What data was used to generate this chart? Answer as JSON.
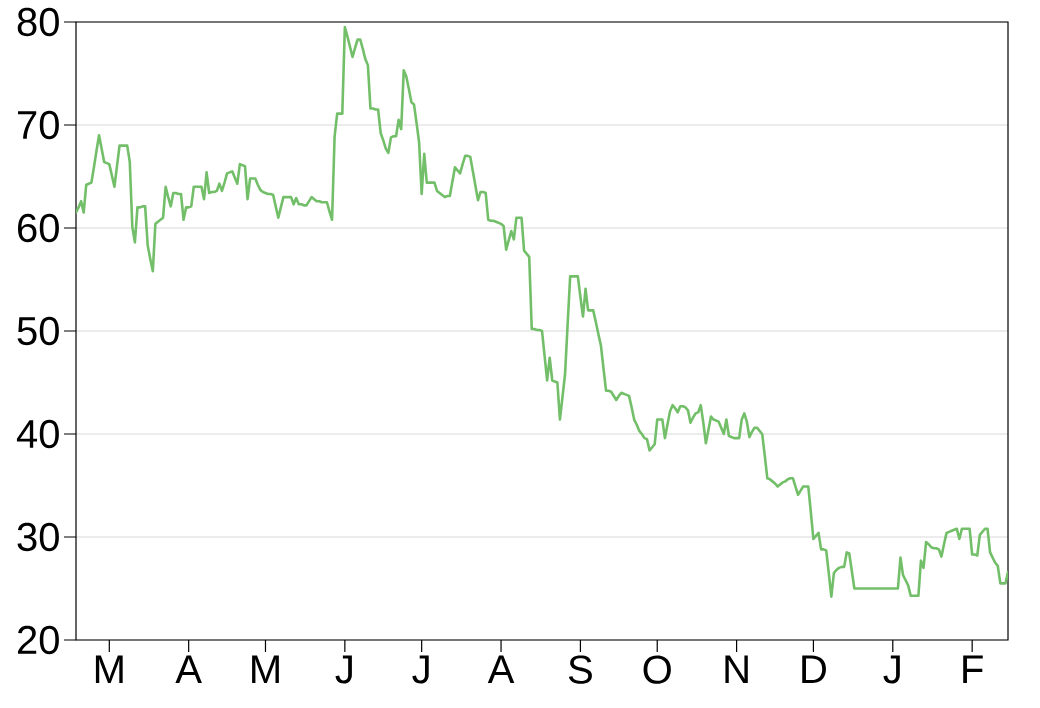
{
  "chart_data": {
    "type": "line",
    "color": "#73bf69",
    "grid": "y",
    "ylim": [
      20,
      80
    ],
    "yticks": [
      20,
      30,
      40,
      50,
      60,
      70,
      80
    ],
    "categories": [
      null,
      null,
      null,
      null,
      null,
      null,
      null,
      null,
      null,
      null,
      null,
      null,
      null,
      "M",
      null,
      null,
      null,
      null,
      null,
      null,
      null,
      null,
      null,
      null,
      null,
      null,
      null,
      null,
      null,
      null,
      null,
      null,
      null,
      null,
      null,
      null,
      null,
      null,
      null,
      null,
      null,
      null,
      null,
      null,
      "A",
      null,
      null,
      null,
      null,
      null,
      null,
      null,
      null,
      null,
      null,
      null,
      null,
      null,
      null,
      null,
      null,
      null,
      null,
      null,
      null,
      null,
      null,
      null,
      null,
      null,
      null,
      null,
      null,
      null,
      "M",
      null,
      null,
      null,
      null,
      null,
      null,
      null,
      null,
      null,
      null,
      null,
      null,
      null,
      null,
      null,
      null,
      null,
      null,
      null,
      null,
      null,
      null,
      null,
      null,
      null,
      null,
      null,
      null,
      null,
      null,
      "J",
      null,
      null,
      null,
      null,
      null,
      null,
      null,
      null,
      null,
      null,
      null,
      null,
      null,
      null,
      null,
      null,
      null,
      null,
      null,
      null,
      null,
      null,
      null,
      null,
      null,
      null,
      null,
      null,
      null,
      "J",
      null,
      null,
      null,
      null,
      null,
      null,
      null,
      null,
      null,
      null,
      null,
      null,
      null,
      null,
      null,
      null,
      null,
      null,
      null,
      null,
      null,
      null,
      null,
      null,
      null,
      null,
      null,
      null,
      null,
      null,
      "A",
      null,
      null,
      null,
      null,
      null,
      null,
      null,
      null,
      null,
      null,
      null,
      null,
      null,
      null,
      null,
      null,
      null,
      null,
      null,
      null,
      null,
      null,
      null,
      null,
      null,
      null,
      null,
      null,
      null,
      null,
      "S",
      null,
      null,
      null,
      null,
      null,
      null,
      null,
      null,
      null,
      null,
      null,
      null,
      null,
      null,
      null,
      null,
      null,
      null,
      null,
      null,
      null,
      null,
      null,
      null,
      null,
      null,
      null,
      null,
      null,
      "O",
      null,
      null,
      null,
      null,
      null,
      null,
      null,
      null,
      null,
      null,
      null,
      null,
      null,
      null,
      null,
      null,
      null,
      null,
      null,
      null,
      null,
      null,
      null,
      null,
      null,
      null,
      null,
      null,
      null,
      null,
      "N",
      null,
      null,
      null,
      null,
      null,
      null,
      null,
      null,
      null,
      null,
      null,
      null,
      null,
      null,
      null,
      null,
      null,
      null,
      null,
      null,
      null,
      null,
      null,
      null,
      null,
      null,
      null,
      null,
      null,
      "D",
      null,
      null,
      null,
      null,
      null,
      null,
      null,
      null,
      null,
      null,
      null,
      null,
      null,
      null,
      null,
      null,
      null,
      null,
      null,
      null,
      null,
      null,
      null,
      null,
      null,
      null,
      null,
      null,
      null,
      null,
      "J",
      null,
      null,
      null,
      null,
      null,
      null,
      null,
      null,
      null,
      null,
      null,
      null,
      null,
      null,
      null,
      null,
      null,
      null,
      null,
      null,
      null,
      null,
      null,
      null,
      null,
      null,
      null,
      null,
      null,
      null,
      "F",
      null,
      null,
      null,
      null,
      null,
      null,
      null,
      null,
      null,
      null,
      null,
      null,
      null,
      null
    ],
    "values": [
      61.5,
      62.0,
      62.6,
      61.5,
      64.2,
      64.3,
      64.4,
      65.9,
      67.5,
      69.0,
      67.7,
      66.4,
      66.3,
      66.2,
      65.1,
      64.0,
      66.0,
      68.0,
      68.0,
      68.0,
      68.0,
      66.4,
      60.1,
      58.6,
      62.0,
      62.0,
      62.1,
      62.1,
      58.3,
      57.0,
      55.8,
      60.4,
      60.6,
      60.8,
      61.0,
      64.0,
      63.0,
      62.1,
      63.4,
      63.4,
      63.3,
      63.3,
      60.8,
      62.0,
      62.0,
      62.1,
      64.0,
      64.0,
      64.0,
      64.0,
      62.8,
      65.4,
      63.4,
      63.5,
      63.5,
      63.6,
      64.3,
      63.6,
      64.4,
      65.3,
      65.4,
      65.5,
      64.9,
      64.3,
      66.2,
      66.1,
      66.0,
      62.8,
      64.8,
      64.8,
      64.8,
      64.2,
      63.7,
      63.5,
      63.4,
      63.3,
      63.3,
      63.2,
      62.1,
      61.0,
      62.0,
      63.0,
      63.0,
      63.0,
      63.0,
      62.3,
      62.9,
      62.3,
      62.3,
      62.2,
      62.2,
      62.6,
      63.0,
      62.8,
      62.6,
      62.6,
      62.5,
      62.5,
      62.5,
      61.6,
      60.8,
      68.9,
      71.1,
      71.1,
      71.1,
      79.5,
      78.6,
      77.6,
      76.6,
      77.5,
      78.3,
      78.3,
      77.4,
      76.4,
      75.8,
      71.6,
      71.6,
      71.5,
      71.5,
      69.2,
      68.5,
      67.7,
      67.3,
      68.8,
      68.9,
      68.9,
      70.5,
      69.6,
      75.3,
      74.7,
      73.5,
      72.2,
      72.0,
      70.2,
      68.3,
      63.3,
      67.2,
      64.4,
      64.4,
      64.4,
      64.4,
      63.6,
      63.4,
      63.2,
      63.0,
      63.1,
      63.1,
      64.5,
      65.9,
      65.6,
      65.3,
      66.2,
      67.0,
      67.0,
      66.9,
      65.5,
      64.1,
      62.7,
      63.5,
      63.5,
      63.4,
      60.8,
      60.7,
      60.7,
      60.6,
      60.5,
      60.4,
      60.2,
      57.9,
      58.8,
      59.7,
      58.9,
      61.0,
      61.0,
      61.0,
      57.8,
      57.5,
      57.2,
      50.2,
      50.2,
      50.1,
      50.1,
      50.0,
      47.6,
      45.2,
      47.4,
      45.2,
      45.1,
      45.0,
      41.4,
      43.6,
      45.8,
      50.6,
      55.3,
      55.3,
      55.3,
      55.3,
      53.3,
      51.4,
      54.1,
      52.0,
      52.0,
      52.0,
      50.9,
      49.7,
      48.6,
      46.4,
      44.2,
      44.2,
      44.1,
      43.7,
      43.3,
      43.7,
      44.0,
      43.9,
      43.8,
      43.7,
      42.6,
      41.4,
      40.9,
      40.3,
      40.0,
      39.6,
      39.5,
      38.4,
      38.7,
      39.0,
      41.4,
      41.4,
      41.4,
      39.6,
      40.9,
      42.2,
      42.8,
      42.5,
      42.1,
      42.7,
      42.7,
      42.6,
      42.3,
      41.1,
      41.6,
      42.0,
      42.1,
      42.8,
      41.1,
      39.1,
      40.4,
      41.7,
      41.4,
      41.3,
      41.2,
      40.6,
      40.0,
      41.4,
      39.8,
      39.7,
      39.6,
      39.6,
      39.6,
      41.4,
      42.0,
      41.2,
      39.7,
      40.2,
      40.6,
      40.6,
      40.3,
      40.0,
      37.9,
      35.7,
      35.6,
      35.4,
      35.2,
      34.9,
      35.1,
      35.3,
      35.4,
      35.6,
      35.7,
      35.7,
      34.9,
      34.1,
      34.5,
      34.9,
      34.9,
      34.9,
      32.4,
      29.8,
      30.1,
      30.4,
      28.8,
      28.8,
      28.7,
      26.5,
      24.2,
      26.5,
      26.8,
      27.0,
      27.1,
      27.1,
      28.5,
      28.4,
      26.7,
      25.0,
      25.0,
      25.0,
      25.0,
      25.0,
      25.0,
      25.0,
      25.0,
      25.0,
      25.0,
      25.0,
      25.0,
      25.0,
      25.0,
      25.0,
      25.0,
      25.0,
      25.0,
      28.0,
      26.3,
      25.8,
      25.3,
      24.3,
      24.3,
      24.3,
      24.3,
      27.7,
      27.0,
      29.5,
      29.3,
      29.0,
      28.9,
      28.9,
      28.8,
      28.1,
      29.3,
      30.4,
      30.5,
      30.6,
      30.7,
      30.8,
      29.8,
      30.8,
      30.8,
      30.8,
      30.8,
      28.3,
      28.3,
      28.2,
      30.2,
      30.5,
      30.8,
      30.8,
      28.5,
      28.0,
      27.5,
      27.2,
      25.5,
      25.5,
      25.5,
      26.6
    ]
  }
}
